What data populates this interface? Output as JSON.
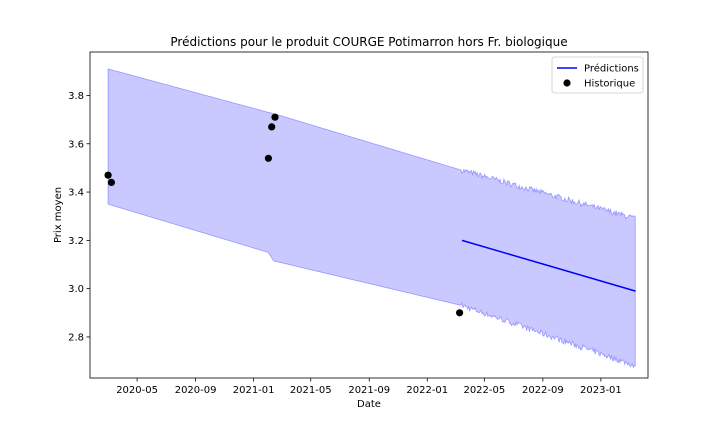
{
  "chart_data": {
    "type": "line",
    "title": "Prédictions pour le produit COURGE Potimarron hors Fr. biologique",
    "xlabel": "Date",
    "ylabel": "Prix moyen",
    "xlim": [
      "2020-01-23",
      "2023-04-10"
    ],
    "ylim": [
      2.63,
      3.98
    ],
    "x_ticks": [
      "2020-05-01",
      "2020-09-01",
      "2021-01-01",
      "2021-05-01",
      "2021-09-01",
      "2022-01-01",
      "2022-05-01",
      "2022-09-01",
      "2023-01-01"
    ],
    "x_tick_labels": [
      "2020-05",
      "2020-09",
      "2021-01",
      "2021-05",
      "2021-09",
      "2022-01",
      "2022-05",
      "2022-09",
      "2023-01"
    ],
    "y_ticks": [
      2.8,
      3.0,
      3.2,
      3.4,
      3.6,
      3.8
    ],
    "y_tick_labels": [
      "2.8",
      "3.0",
      "3.2",
      "3.4",
      "3.6",
      "3.8"
    ],
    "legend": {
      "placement": "top-right",
      "entries": [
        {
          "label": "Prédictions",
          "marker": "line",
          "color": "#0000ff"
        },
        {
          "label": "Historique",
          "marker": "dot",
          "color": "#000000"
        }
      ]
    },
    "series": [
      {
        "name": "Prédictions",
        "kind": "line",
        "color": "#0000ff",
        "x": [
          "2022-03-15",
          "2023-03-15"
        ],
        "y": [
          3.2,
          2.99
        ]
      },
      {
        "name": "Historique",
        "kind": "scatter",
        "color": "#000000",
        "x": [
          "2020-03-01",
          "2020-03-08",
          "2021-02-01",
          "2021-02-08",
          "2021-02-15",
          "2022-03-10"
        ],
        "y": [
          3.47,
          3.44,
          3.54,
          3.67,
          3.71,
          2.9
        ]
      }
    ],
    "band": {
      "color": "#6464ff",
      "opacity": 0.35,
      "x": [
        "2020-03-01",
        "2021-02-01",
        "2021-02-12",
        "2022-03-15",
        "2023-03-15"
      ],
      "upper": [
        3.91,
        3.73,
        3.725,
        3.49,
        3.29
      ],
      "lower": [
        3.35,
        3.15,
        3.115,
        2.93,
        2.68
      ],
      "noisy_from": "2022-03-15",
      "noise_amplitude": 0.012
    }
  }
}
